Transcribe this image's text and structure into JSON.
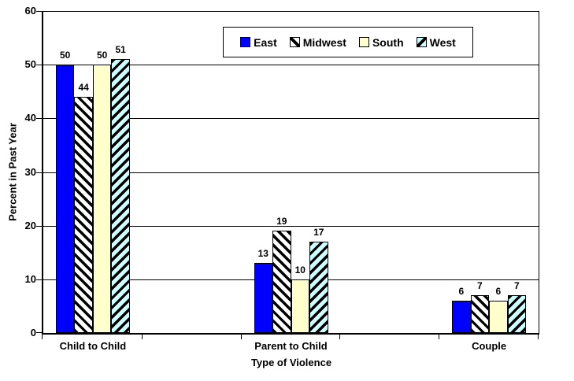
{
  "chart_data": {
    "type": "bar",
    "title": "",
    "xlabel": "Type of Violence",
    "ylabel": "Percent in Past Year",
    "ylim": [
      0,
      60
    ],
    "yticks": [
      0,
      10,
      20,
      30,
      40,
      50,
      60
    ],
    "grid": true,
    "legend_position": "top",
    "bar_value_labels": true,
    "categories": [
      "Child to Child",
      "Parent to Child",
      "Couple"
    ],
    "series": [
      {
        "name": "East",
        "values": [
          50,
          13,
          6
        ],
        "fill": "#0000FF",
        "pattern": "solid",
        "hatch_color": null
      },
      {
        "name": "Midwest",
        "values": [
          44,
          19,
          7
        ],
        "fill": "#FFFFFF",
        "pattern": "diagonal-down",
        "hatch_color": "#000000"
      },
      {
        "name": "South",
        "values": [
          50,
          10,
          6
        ],
        "fill": "#FFFFCC",
        "pattern": "solid",
        "hatch_color": null
      },
      {
        "name": "West",
        "values": [
          51,
          17,
          7
        ],
        "fill": "#CCFFFF",
        "pattern": "diagonal-up",
        "hatch_color": "#000000"
      }
    ],
    "layout_note": "5 category slots on x-axis; slots 2 and 4 are empty spacers",
    "colors": {
      "axis": "#000000",
      "background": "#FFFFFF",
      "text": "#000000"
    }
  }
}
